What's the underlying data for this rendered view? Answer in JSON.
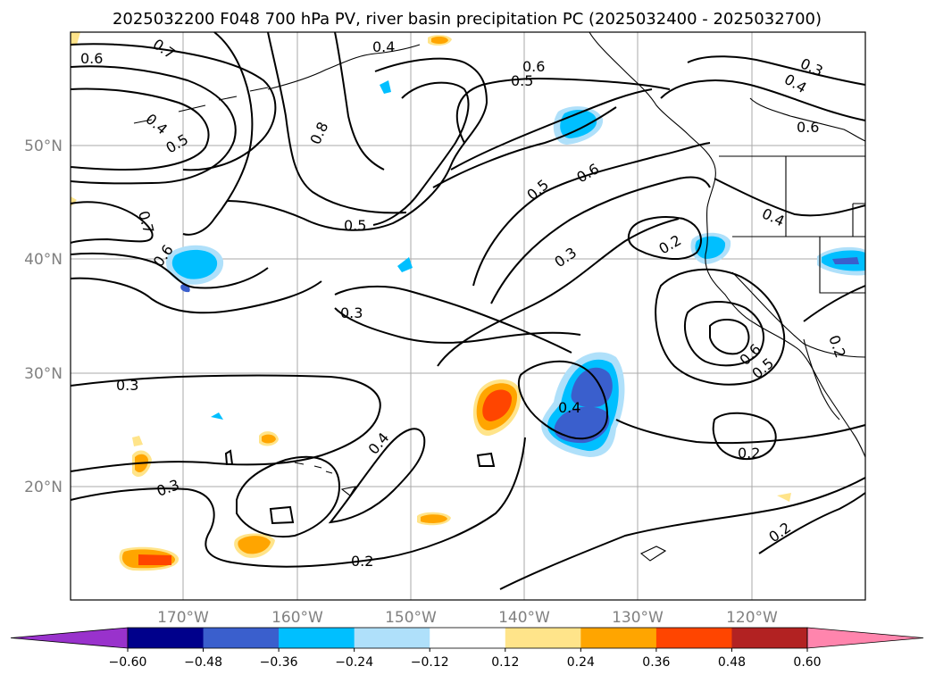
{
  "title": "2025032200 F048 700 hPa PV, river basin precipitation PC (2025032400 - 2025032700)",
  "lat_labels": [
    "50°N",
    "40°N",
    "30°N",
    "20°N"
  ],
  "lon_labels": [
    "170°W",
    "160°W",
    "150°W",
    "140°W",
    "130°W",
    "120°W"
  ],
  "colorbar": {
    "tick_labels": [
      "−0.60",
      "−0.48",
      "−0.36",
      "−0.24",
      "−0.12",
      "0.12",
      "0.24",
      "0.36",
      "0.48",
      "0.60"
    ],
    "colors": [
      "#9932cc",
      "#00008b",
      "#3a5fcd",
      "#00bfff",
      "#afe0fa",
      "#ffffff",
      "#ffe48a",
      "#ffa500",
      "#ff4500",
      "#b22222",
      "#ff85ad"
    ]
  },
  "contour_labels": [
    "0.7",
    "0.6",
    "0.4",
    "0.5",
    "0.8",
    "0.7",
    "0.6",
    "0.5",
    "0.3",
    "0.6",
    "0.5",
    "0.6",
    "0.5",
    "0.3",
    "0.4",
    "0.6",
    "0.4",
    "0.2",
    "0.3",
    "0.4",
    "0.6",
    "0.5",
    "0.2",
    "0.3",
    "0.3",
    "0.4",
    "0.4",
    "0.2",
    "0.2",
    "0.2"
  ]
}
